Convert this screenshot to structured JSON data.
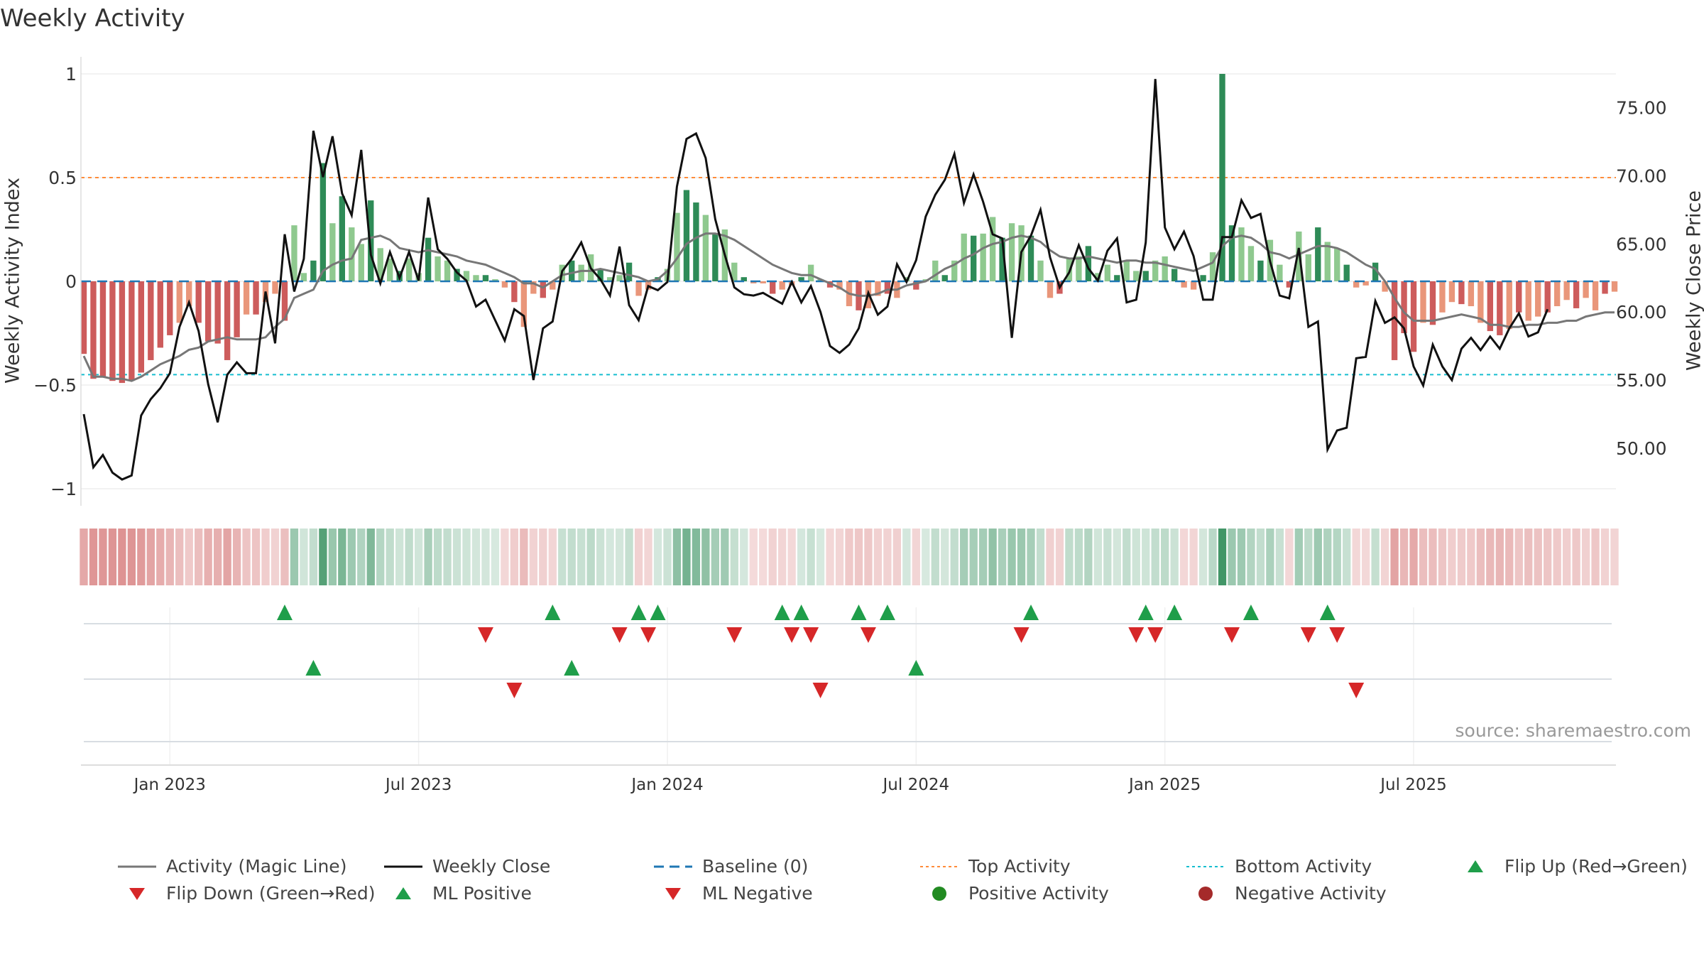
{
  "chart_data": {
    "type": "bar+line",
    "title": "Weekly Activity",
    "ylabel": "Weekly Activity Index",
    "ylabel_right": "Weekly Close Price",
    "ylim": [
      -1.1,
      1.1
    ],
    "ylim_right": [
      45.5,
      79.0
    ],
    "yticks": [
      {
        "v": 1,
        "t": "1"
      },
      {
        "v": 0.5,
        "t": "0.5"
      },
      {
        "v": 0,
        "t": "0"
      },
      {
        "v": -0.5,
        "t": "−0.5"
      },
      {
        "v": -1,
        "t": "−1"
      }
    ],
    "yticks_right": [
      "50.00",
      "55.00",
      "60.00",
      "65.00",
      "70.00",
      "75.00"
    ],
    "xticks": [
      {
        "week": 9,
        "label": "Jan 2023"
      },
      {
        "week": 35,
        "label": "Jul 2023"
      },
      {
        "week": 61,
        "label": "Jan 2024"
      },
      {
        "week": 87,
        "label": "Jul 2024"
      },
      {
        "week": 113,
        "label": "Jan 2025"
      },
      {
        "week": 139,
        "label": "Jul 2025"
      }
    ],
    "top_activity": 0.5,
    "bottom_activity": -0.45,
    "baseline": 0,
    "activity": [
      -0.35,
      -0.47,
      -0.46,
      -0.48,
      -0.49,
      -0.48,
      -0.44,
      -0.38,
      -0.32,
      -0.26,
      -0.2,
      -0.12,
      -0.2,
      -0.29,
      -0.3,
      -0.38,
      -0.27,
      -0.16,
      -0.16,
      -0.1,
      -0.06,
      -0.19,
      0.27,
      0.04,
      0.1,
      0.57,
      0.28,
      0.41,
      0.26,
      0.18,
      0.39,
      0.16,
      0.11,
      0.05,
      0.11,
      0.04,
      0.21,
      0.12,
      0.1,
      0.06,
      0.05,
      0.03,
      0.03,
      0.01,
      -0.03,
      -0.1,
      -0.22,
      -0.06,
      -0.08,
      -0.04,
      0.08,
      0.1,
      0.08,
      0.13,
      0.06,
      0.02,
      0.03,
      0.09,
      -0.07,
      -0.04,
      0.02,
      0.06,
      0.33,
      0.44,
      0.38,
      0.32,
      0.23,
      0.25,
      0.09,
      0.02,
      -0.01,
      -0.01,
      -0.06,
      -0.04,
      -0.02,
      0.02,
      0.08,
      0.01,
      -0.03,
      -0.04,
      -0.12,
      -0.14,
      -0.13,
      -0.07,
      -0.06,
      -0.08,
      0.02,
      -0.04,
      0.01,
      0.1,
      0.03,
      0.1,
      0.23,
      0.22,
      0.23,
      0.31,
      0.21,
      0.28,
      0.27,
      0.22,
      0.1,
      -0.08,
      -0.06,
      0.11,
      0.12,
      0.17,
      0.04,
      0.08,
      0.03,
      0.1,
      0.05,
      0.05,
      0.1,
      0.12,
      0.06,
      -0.03,
      -0.04,
      0.03,
      0.14,
      1.0,
      0.27,
      0.26,
      0.17,
      0.1,
      0.2,
      0.08,
      -0.03,
      0.24,
      0.13,
      0.26,
      0.19,
      0.16,
      0.08,
      -0.03,
      -0.02,
      0.09,
      -0.05,
      -0.38,
      -0.25,
      -0.34,
      -0.2,
      -0.21,
      -0.15,
      -0.1,
      -0.11,
      -0.12,
      -0.2,
      -0.24,
      -0.26,
      -0.23,
      -0.15,
      -0.19,
      -0.17,
      -0.15,
      -0.12,
      -0.09,
      -0.13,
      -0.08,
      -0.14,
      -0.06,
      -0.05
    ],
    "magic_line": [
      -0.36,
      -0.46,
      -0.46,
      -0.47,
      -0.47,
      -0.48,
      -0.46,
      -0.43,
      -0.4,
      -0.38,
      -0.36,
      -0.33,
      -0.32,
      -0.29,
      -0.28,
      -0.27,
      -0.28,
      -0.28,
      -0.28,
      -0.27,
      -0.22,
      -0.18,
      -0.08,
      -0.06,
      -0.04,
      0.05,
      0.08,
      0.1,
      0.11,
      0.2,
      0.21,
      0.22,
      0.2,
      0.16,
      0.15,
      0.14,
      0.15,
      0.14,
      0.13,
      0.12,
      0.1,
      0.09,
      0.08,
      0.06,
      0.04,
      0.02,
      -0.01,
      -0.01,
      -0.03,
      0.0,
      0.03,
      0.04,
      0.05,
      0.05,
      0.06,
      0.05,
      0.04,
      0.03,
      0.02,
      0.0,
      0.01,
      0.05,
      0.11,
      0.18,
      0.21,
      0.23,
      0.23,
      0.22,
      0.2,
      0.17,
      0.14,
      0.11,
      0.08,
      0.06,
      0.04,
      0.03,
      0.03,
      0.01,
      -0.01,
      -0.03,
      -0.06,
      -0.07,
      -0.07,
      -0.06,
      -0.04,
      -0.04,
      -0.02,
      -0.01,
      0.0,
      0.03,
      0.06,
      0.08,
      0.11,
      0.13,
      0.16,
      0.18,
      0.19,
      0.21,
      0.22,
      0.21,
      0.19,
      0.15,
      0.12,
      0.11,
      0.11,
      0.12,
      0.11,
      0.1,
      0.09,
      0.1,
      0.1,
      0.09,
      0.09,
      0.08,
      0.07,
      0.06,
      0.05,
      0.07,
      0.09,
      0.17,
      0.21,
      0.22,
      0.21,
      0.18,
      0.14,
      0.13,
      0.11,
      0.13,
      0.15,
      0.17,
      0.17,
      0.16,
      0.14,
      0.11,
      0.08,
      0.06,
      0.0,
      -0.08,
      -0.15,
      -0.19,
      -0.19,
      -0.19,
      -0.18,
      -0.17,
      -0.16,
      -0.17,
      -0.18,
      -0.21,
      -0.21,
      -0.22,
      -0.22,
      -0.21,
      -0.21,
      -0.2,
      -0.2,
      -0.19,
      -0.19,
      -0.17,
      -0.16,
      -0.15,
      -0.15
    ],
    "weekly_close": [
      52.5,
      48.6,
      49.5,
      48.2,
      47.7,
      48.0,
      52.4,
      53.6,
      54.4,
      55.5,
      58.9,
      60.7,
      58.6,
      54.7,
      51.9,
      55.4,
      56.3,
      55.5,
      55.5,
      61.5,
      57.7,
      65.7,
      61.5,
      63.9,
      73.3,
      69.9,
      72.9,
      68.7,
      67.1,
      71.9,
      64.2,
      62.1,
      64.4,
      62.5,
      64.4,
      62.3,
      68.4,
      64.6,
      63.9,
      62.9,
      62.3,
      60.4,
      60.9,
      59.4,
      57.9,
      60.2,
      59.7,
      55.0,
      58.8,
      59.3,
      63.0,
      63.9,
      65.1,
      63.2,
      62.4,
      61.2,
      64.8,
      60.5,
      59.4,
      61.9,
      61.6,
      62.2,
      69.2,
      72.7,
      73.1,
      71.3,
      66.8,
      64.2,
      61.8,
      61.3,
      61.2,
      61.4,
      61.0,
      60.6,
      62.2,
      60.7,
      61.9,
      60.0,
      57.5,
      57.0,
      57.6,
      58.8,
      61.4,
      59.8,
      60.4,
      63.5,
      62.2,
      63.8,
      67.0,
      68.6,
      69.7,
      71.6,
      68.0,
      70.1,
      68.1,
      65.7,
      65.4,
      58.1,
      64.4,
      65.6,
      67.5,
      64.0,
      61.8,
      62.9,
      64.9,
      63.2,
      62.3,
      64.5,
      65.4,
      60.7,
      60.9,
      65.1,
      77.1,
      66.2,
      64.6,
      65.9,
      64.1,
      60.9,
      60.9,
      65.5,
      65.5,
      68.2,
      66.9,
      67.2,
      63.7,
      61.2,
      61.0,
      64.7,
      58.9,
      59.3,
      49.9,
      51.3,
      51.5,
      56.6,
      56.7,
      60.8,
      59.2,
      59.6,
      58.8,
      56.0,
      54.6,
      57.6,
      56.0,
      55.0,
      57.3,
      58.1,
      57.2,
      58.2,
      57.3,
      58.8,
      59.9,
      58.2,
      58.5,
      60.2
    ],
    "color_strip_label": "weekly activity color strip",
    "flip_up_weeks": [
      21,
      49,
      58,
      60,
      73,
      75,
      81,
      84,
      99,
      111,
      114,
      122,
      130
    ],
    "flip_down_weeks": [
      42,
      56,
      59,
      68,
      74,
      76,
      82,
      98,
      110,
      112,
      120,
      128,
      131
    ],
    "ml_positive_weeks": [
      24,
      51,
      87
    ],
    "ml_negative_weeks": [
      45,
      77,
      133
    ],
    "source": "source: sharemaestro.com",
    "legend": [
      {
        "key": "magic",
        "label": "Activity (Magic Line)"
      },
      {
        "key": "close",
        "label": "Weekly Close"
      },
      {
        "key": "baseline",
        "label": "Baseline (0)"
      },
      {
        "key": "top",
        "label": "Top Activity"
      },
      {
        "key": "bottom",
        "label": "Bottom Activity"
      },
      {
        "key": "flipup",
        "label": "Flip Up (Red→Green)"
      },
      {
        "key": "flipdown",
        "label": "Flip Down (Green→Red)"
      },
      {
        "key": "mlpos",
        "label": "ML Positive"
      },
      {
        "key": "mlneg",
        "label": "ML Negative"
      },
      {
        "key": "pos",
        "label": "Positive Activity"
      },
      {
        "key": "neg",
        "label": "Negative Activity"
      }
    ],
    "colors": {
      "pos_strong": "#2e8b57",
      "pos_light": "#8fc98f",
      "neg_strong": "#cd5c5c",
      "neg_light": "#e9967a",
      "magic_line": "#777777",
      "close_line": "#111111",
      "baseline": "#1f77b4",
      "top": "#ff8c3a",
      "bottom": "#17becf",
      "flip_up": "#1f9e4a",
      "flip_down": "#d62728",
      "pos_dot": "#228b22",
      "neg_dot": "#a52a2a"
    }
  }
}
